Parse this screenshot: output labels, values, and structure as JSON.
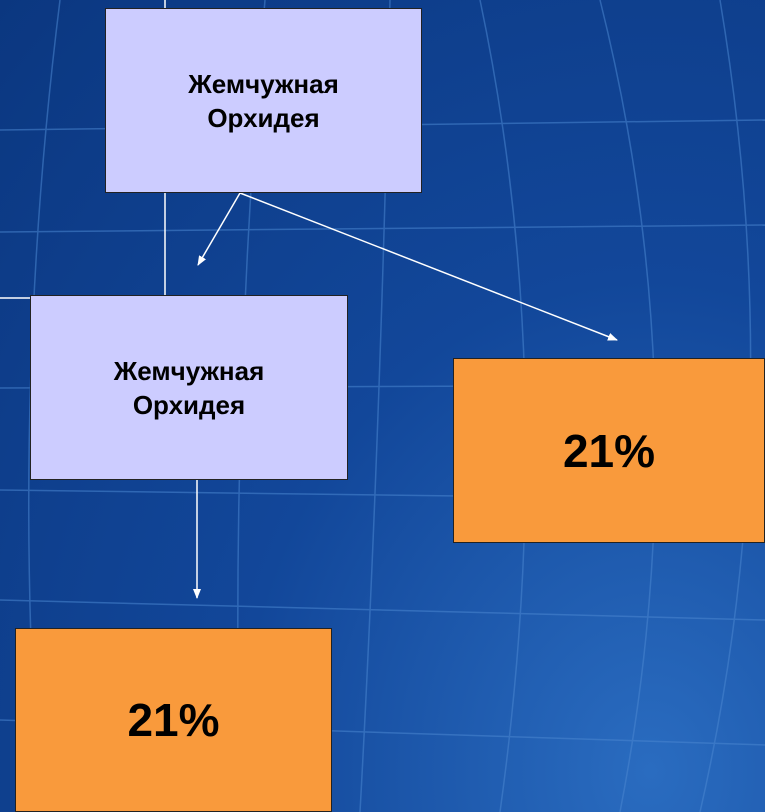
{
  "nodes": [
    {
      "label": "Жемчужная Орхидея"
    },
    {
      "label": "Жемчужная Орхидея"
    },
    {
      "label": "21%"
    },
    {
      "label": "21%"
    }
  ]
}
